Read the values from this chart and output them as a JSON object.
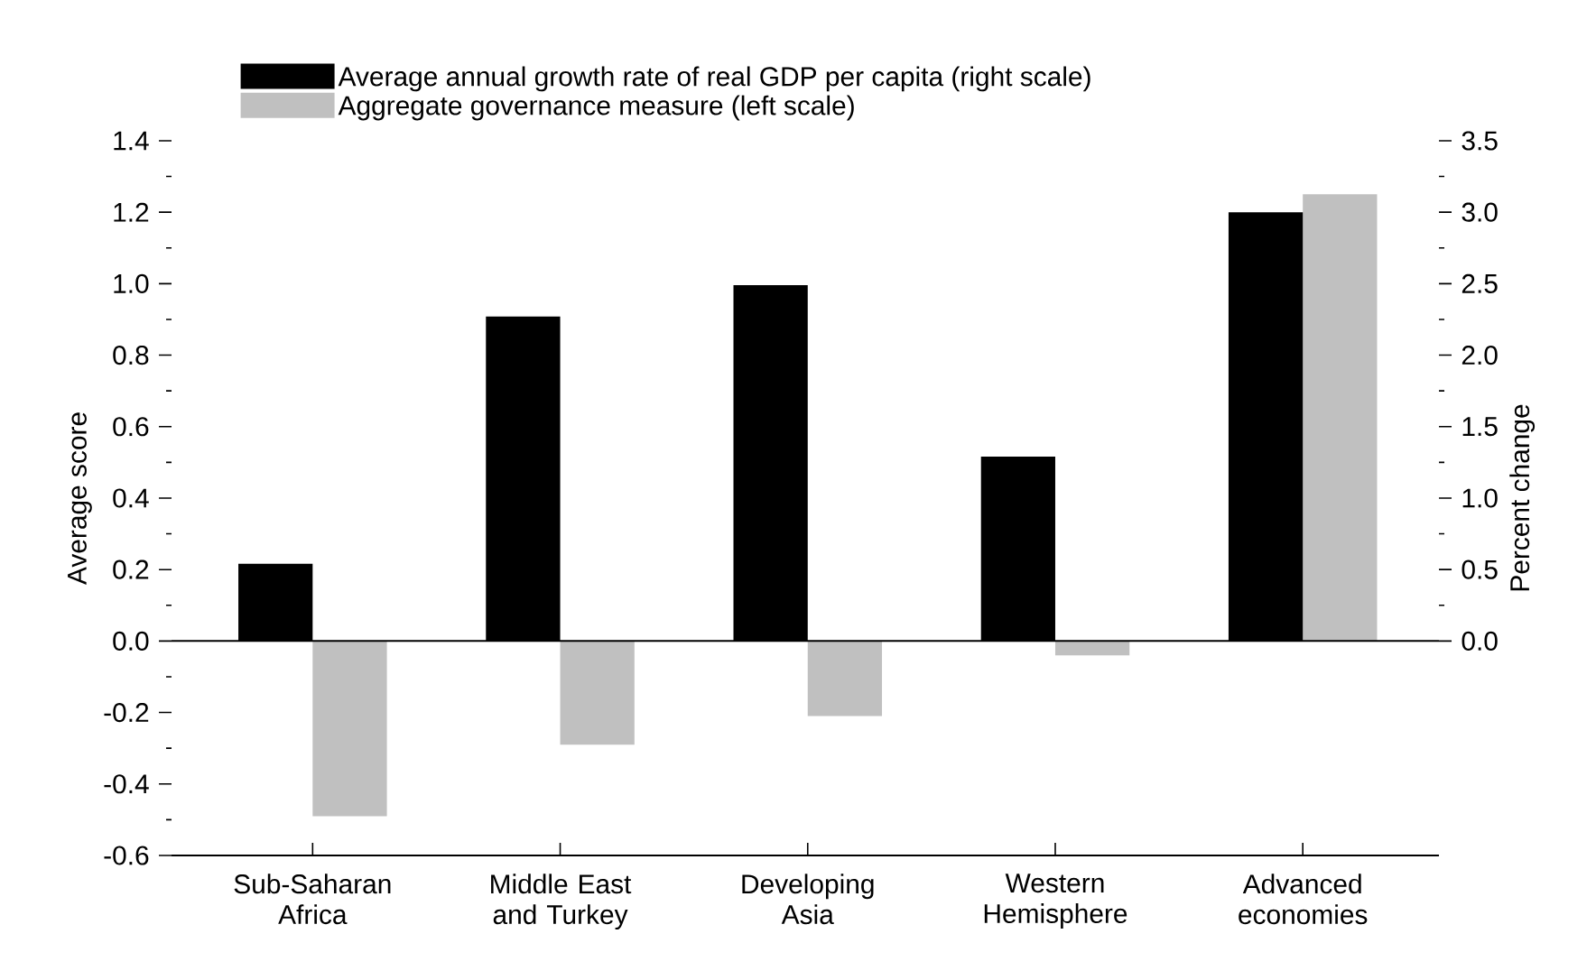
{
  "chart_data": {
    "type": "bar",
    "categories": [
      "Sub-Saharan Africa",
      "Middle East and Turkey",
      "Developing Asia",
      "Western Hemisphere",
      "Advanced economies"
    ],
    "series": [
      {
        "name": "Average annual growth rate of real GDP per capita (right scale)",
        "color": "#000000",
        "axis": "y2",
        "values": [
          0.54,
          2.27,
          2.49,
          1.29,
          3.0
        ]
      },
      {
        "name": "Aggregate governance measure (left scale)",
        "color": "#c0c0c0",
        "values": [
          -0.49,
          -0.29,
          -0.21,
          -0.04,
          1.25
        ]
      }
    ],
    "ylabel": "Average score",
    "y2label": "Percent change",
    "ylim": [
      -0.6,
      1.4
    ],
    "yticks": [
      -0.6,
      -0.4,
      -0.2,
      {
        "value": 0,
        "label": "0.0"
      },
      0.2,
      0.4,
      0.6,
      0.8,
      {
        "value": 1,
        "label": "1.0"
      },
      1.2,
      1.4
    ],
    "y2lim": [
      -1.5,
      3.5
    ],
    "y2ticks": [
      {
        "value": 0,
        "label": "0.0"
      },
      0.5,
      {
        "value": 1,
        "label": "1.0"
      },
      1.5,
      {
        "value": 2,
        "label": "2.0"
      },
      2.5,
      {
        "value": 3,
        "label": "3.0"
      },
      3.5
    ],
    "ref_lines": [
      {
        "axis": "y",
        "value": 0
      }
    ],
    "legend": "top"
  }
}
